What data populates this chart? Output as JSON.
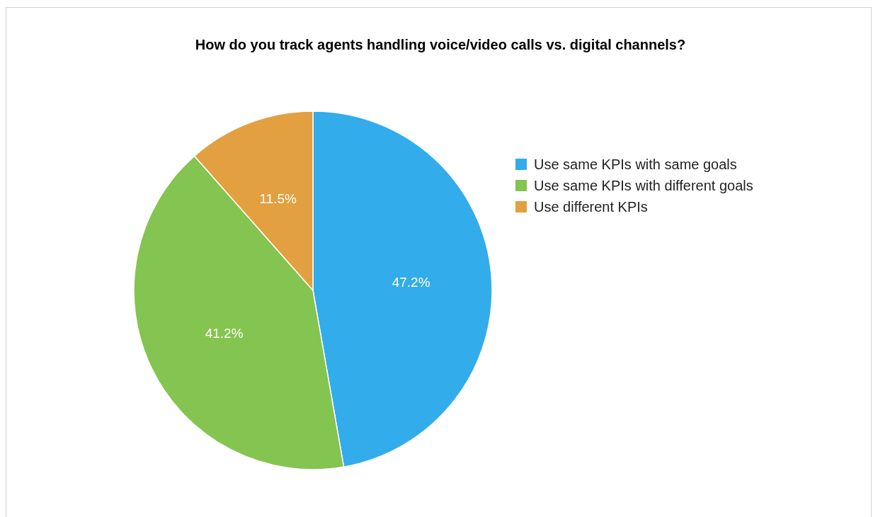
{
  "chart_data": {
    "type": "pie",
    "title": "How do you track agents handling voice/video calls vs. digital channels?",
    "categories": [
      "Use same KPIs with same goals",
      "Use same KPIs with different goals",
      "Use different KPIs"
    ],
    "values": [
      47.2,
      41.2,
      11.5
    ],
    "colors": [
      "#32acea",
      "#84c450",
      "#e3a040"
    ],
    "value_labels": [
      "47.2%",
      "41.2%",
      "11.5%"
    ],
    "legend": "right"
  }
}
